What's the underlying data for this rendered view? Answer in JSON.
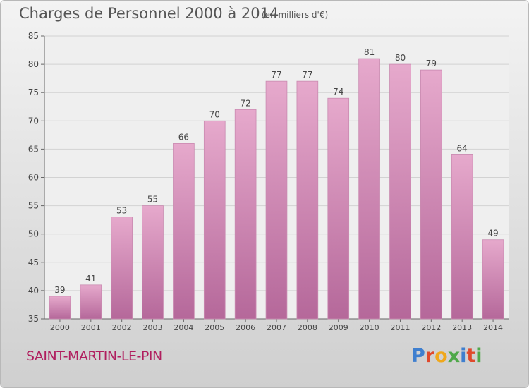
{
  "header": {
    "title": "Charges de Personnel 2000 à 2014",
    "subtitle": "(en milliers d'€)"
  },
  "footer": {
    "place_name": "SAINT-MARTIN-LE-PIN",
    "logo_text": "Proxiti"
  },
  "colors": {
    "bar_top": "#e6a9cc",
    "bar_bottom": "#b5689a",
    "place_text": "#b01e5e",
    "logo": [
      "#3f7fcf",
      "#e0492c",
      "#f0a81b",
      "#4fa84a",
      "#3f7fcf",
      "#e0492c",
      "#4fa84a"
    ]
  },
  "chart_data": {
    "type": "bar",
    "categories": [
      "2000",
      "2001",
      "2002",
      "2003",
      "2004",
      "2005",
      "2006",
      "2007",
      "2008",
      "2009",
      "2010",
      "2011",
      "2012",
      "2013",
      "2014"
    ],
    "values": [
      39,
      41,
      53,
      55,
      66,
      70,
      72,
      77,
      77,
      74,
      81,
      80,
      79,
      64,
      49
    ],
    "ylim": [
      35,
      85
    ],
    "yticks": [
      35,
      40,
      45,
      50,
      55,
      60,
      65,
      70,
      75,
      80,
      85
    ],
    "grid": true,
    "data_labels": true
  }
}
